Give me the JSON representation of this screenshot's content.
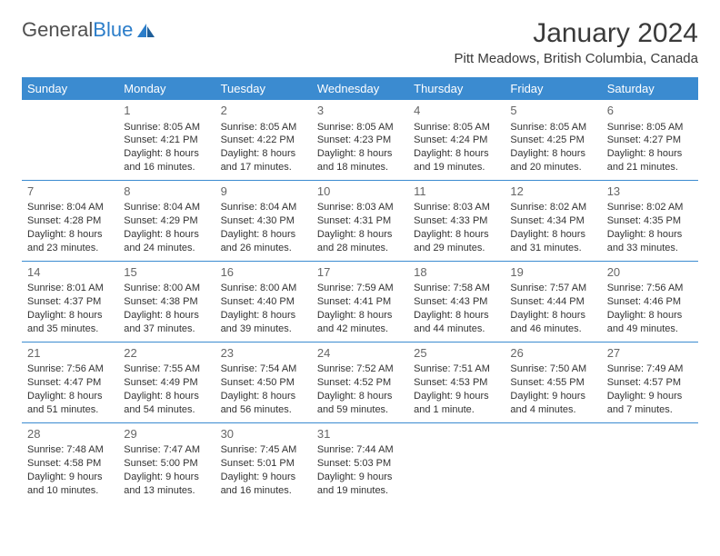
{
  "logo": {
    "text_gray": "General",
    "text_blue": "Blue"
  },
  "title": "January 2024",
  "location": "Pitt Meadows, British Columbia, Canada",
  "colors": {
    "header_bg": "#3b8bd0",
    "header_text": "#ffffff",
    "row_border": "#3b8bd0",
    "body_text": "#333333",
    "daynum_text": "#666666",
    "logo_gray": "#505050",
    "logo_blue": "#2b7dc9",
    "background": "#ffffff"
  },
  "weekdays": [
    "Sunday",
    "Monday",
    "Tuesday",
    "Wednesday",
    "Thursday",
    "Friday",
    "Saturday"
  ],
  "weeks": [
    [
      {
        "num": "",
        "sunrise": "",
        "sunset": "",
        "daylight": ""
      },
      {
        "num": "1",
        "sunrise": "Sunrise: 8:05 AM",
        "sunset": "Sunset: 4:21 PM",
        "daylight": "Daylight: 8 hours and 16 minutes."
      },
      {
        "num": "2",
        "sunrise": "Sunrise: 8:05 AM",
        "sunset": "Sunset: 4:22 PM",
        "daylight": "Daylight: 8 hours and 17 minutes."
      },
      {
        "num": "3",
        "sunrise": "Sunrise: 8:05 AM",
        "sunset": "Sunset: 4:23 PM",
        "daylight": "Daylight: 8 hours and 18 minutes."
      },
      {
        "num": "4",
        "sunrise": "Sunrise: 8:05 AM",
        "sunset": "Sunset: 4:24 PM",
        "daylight": "Daylight: 8 hours and 19 minutes."
      },
      {
        "num": "5",
        "sunrise": "Sunrise: 8:05 AM",
        "sunset": "Sunset: 4:25 PM",
        "daylight": "Daylight: 8 hours and 20 minutes."
      },
      {
        "num": "6",
        "sunrise": "Sunrise: 8:05 AM",
        "sunset": "Sunset: 4:27 PM",
        "daylight": "Daylight: 8 hours and 21 minutes."
      }
    ],
    [
      {
        "num": "7",
        "sunrise": "Sunrise: 8:04 AM",
        "sunset": "Sunset: 4:28 PM",
        "daylight": "Daylight: 8 hours and 23 minutes."
      },
      {
        "num": "8",
        "sunrise": "Sunrise: 8:04 AM",
        "sunset": "Sunset: 4:29 PM",
        "daylight": "Daylight: 8 hours and 24 minutes."
      },
      {
        "num": "9",
        "sunrise": "Sunrise: 8:04 AM",
        "sunset": "Sunset: 4:30 PM",
        "daylight": "Daylight: 8 hours and 26 minutes."
      },
      {
        "num": "10",
        "sunrise": "Sunrise: 8:03 AM",
        "sunset": "Sunset: 4:31 PM",
        "daylight": "Daylight: 8 hours and 28 minutes."
      },
      {
        "num": "11",
        "sunrise": "Sunrise: 8:03 AM",
        "sunset": "Sunset: 4:33 PM",
        "daylight": "Daylight: 8 hours and 29 minutes."
      },
      {
        "num": "12",
        "sunrise": "Sunrise: 8:02 AM",
        "sunset": "Sunset: 4:34 PM",
        "daylight": "Daylight: 8 hours and 31 minutes."
      },
      {
        "num": "13",
        "sunrise": "Sunrise: 8:02 AM",
        "sunset": "Sunset: 4:35 PM",
        "daylight": "Daylight: 8 hours and 33 minutes."
      }
    ],
    [
      {
        "num": "14",
        "sunrise": "Sunrise: 8:01 AM",
        "sunset": "Sunset: 4:37 PM",
        "daylight": "Daylight: 8 hours and 35 minutes."
      },
      {
        "num": "15",
        "sunrise": "Sunrise: 8:00 AM",
        "sunset": "Sunset: 4:38 PM",
        "daylight": "Daylight: 8 hours and 37 minutes."
      },
      {
        "num": "16",
        "sunrise": "Sunrise: 8:00 AM",
        "sunset": "Sunset: 4:40 PM",
        "daylight": "Daylight: 8 hours and 39 minutes."
      },
      {
        "num": "17",
        "sunrise": "Sunrise: 7:59 AM",
        "sunset": "Sunset: 4:41 PM",
        "daylight": "Daylight: 8 hours and 42 minutes."
      },
      {
        "num": "18",
        "sunrise": "Sunrise: 7:58 AM",
        "sunset": "Sunset: 4:43 PM",
        "daylight": "Daylight: 8 hours and 44 minutes."
      },
      {
        "num": "19",
        "sunrise": "Sunrise: 7:57 AM",
        "sunset": "Sunset: 4:44 PM",
        "daylight": "Daylight: 8 hours and 46 minutes."
      },
      {
        "num": "20",
        "sunrise": "Sunrise: 7:56 AM",
        "sunset": "Sunset: 4:46 PM",
        "daylight": "Daylight: 8 hours and 49 minutes."
      }
    ],
    [
      {
        "num": "21",
        "sunrise": "Sunrise: 7:56 AM",
        "sunset": "Sunset: 4:47 PM",
        "daylight": "Daylight: 8 hours and 51 minutes."
      },
      {
        "num": "22",
        "sunrise": "Sunrise: 7:55 AM",
        "sunset": "Sunset: 4:49 PM",
        "daylight": "Daylight: 8 hours and 54 minutes."
      },
      {
        "num": "23",
        "sunrise": "Sunrise: 7:54 AM",
        "sunset": "Sunset: 4:50 PM",
        "daylight": "Daylight: 8 hours and 56 minutes."
      },
      {
        "num": "24",
        "sunrise": "Sunrise: 7:52 AM",
        "sunset": "Sunset: 4:52 PM",
        "daylight": "Daylight: 8 hours and 59 minutes."
      },
      {
        "num": "25",
        "sunrise": "Sunrise: 7:51 AM",
        "sunset": "Sunset: 4:53 PM",
        "daylight": "Daylight: 9 hours and 1 minute."
      },
      {
        "num": "26",
        "sunrise": "Sunrise: 7:50 AM",
        "sunset": "Sunset: 4:55 PM",
        "daylight": "Daylight: 9 hours and 4 minutes."
      },
      {
        "num": "27",
        "sunrise": "Sunrise: 7:49 AM",
        "sunset": "Sunset: 4:57 PM",
        "daylight": "Daylight: 9 hours and 7 minutes."
      }
    ],
    [
      {
        "num": "28",
        "sunrise": "Sunrise: 7:48 AM",
        "sunset": "Sunset: 4:58 PM",
        "daylight": "Daylight: 9 hours and 10 minutes."
      },
      {
        "num": "29",
        "sunrise": "Sunrise: 7:47 AM",
        "sunset": "Sunset: 5:00 PM",
        "daylight": "Daylight: 9 hours and 13 minutes."
      },
      {
        "num": "30",
        "sunrise": "Sunrise: 7:45 AM",
        "sunset": "Sunset: 5:01 PM",
        "daylight": "Daylight: 9 hours and 16 minutes."
      },
      {
        "num": "31",
        "sunrise": "Sunrise: 7:44 AM",
        "sunset": "Sunset: 5:03 PM",
        "daylight": "Daylight: 9 hours and 19 minutes."
      },
      {
        "num": "",
        "sunrise": "",
        "sunset": "",
        "daylight": ""
      },
      {
        "num": "",
        "sunrise": "",
        "sunset": "",
        "daylight": ""
      },
      {
        "num": "",
        "sunrise": "",
        "sunset": "",
        "daylight": ""
      }
    ]
  ]
}
